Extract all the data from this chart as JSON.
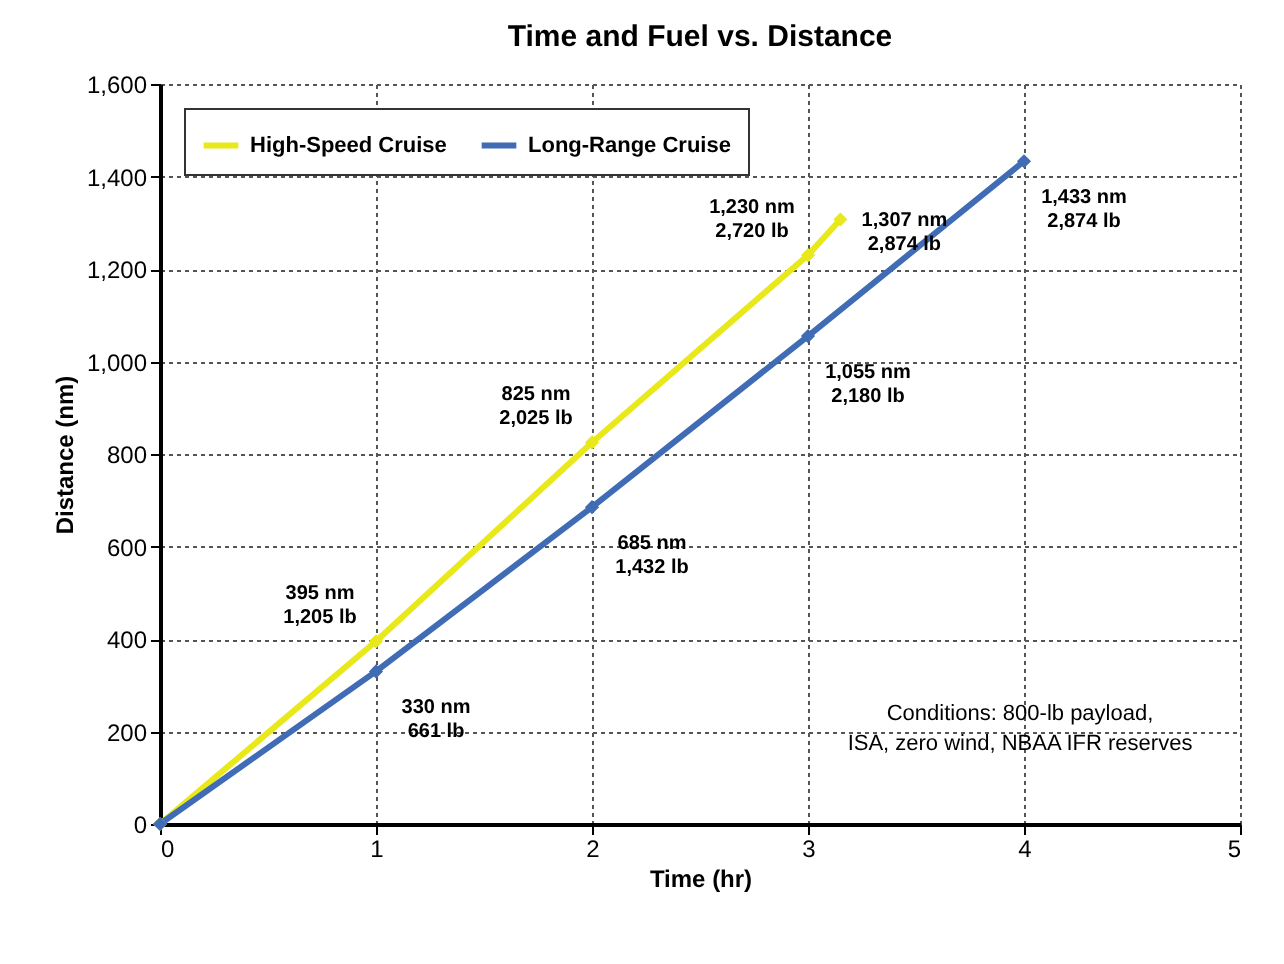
{
  "chart_data": {
    "type": "line",
    "title": "Time and Fuel vs. Distance",
    "xlabel": "Time (hr)",
    "ylabel": "Distance (nm)",
    "x": [
      0,
      1,
      2,
      3,
      4
    ],
    "series": [
      {
        "name": "High-Speed Cruise",
        "color": "#e8e81a",
        "x": [
          0,
          1,
          2,
          3,
          3.15
        ],
        "values": [
          0,
          395,
          825,
          1230,
          1307
        ]
      },
      {
        "name": "Long-Range Cruise",
        "color": "#3f6cb4",
        "values": [
          0,
          330,
          685,
          1055,
          1433
        ]
      }
    ],
    "xlim": [
      0,
      5
    ],
    "xticks": [
      0,
      1,
      2,
      3,
      4,
      5
    ],
    "ylim": [
      0,
      1600
    ],
    "yticks": [
      0,
      200,
      400,
      600,
      800,
      {
        "value": 1000,
        "label": "1,000"
      },
      {
        "value": 1200,
        "label": "1,200"
      },
      {
        "value": 1400,
        "label": "1,400"
      },
      {
        "value": 1600,
        "label": "1,600"
      }
    ],
    "grid": true,
    "legend": "top left",
    "marker": "diamond",
    "line_style": "solid",
    "annotations": [
      {
        "text": "395 nm\n1,205 lb",
        "x": 1,
        "y": 395
      },
      {
        "text": "825 nm\n2,025 lb",
        "x": 2,
        "y": 825
      },
      {
        "text": "1,230 nm\n2,720 lb",
        "x": 3,
        "y": 1230
      },
      {
        "text": "1,307 nm\n2,874 lb",
        "x": 3.15,
        "y": 1307
      },
      {
        "text": "330 nm\n661 lb",
        "x": 1,
        "y": 330
      },
      {
        "text": "685 nm\n1,432 lb",
        "x": 2,
        "y": 685
      },
      {
        "text": "1,055 nm\n2,180 lb",
        "x": 3,
        "y": 1055
      },
      {
        "text": "1,433 nm\n2,874 lb",
        "x": 4,
        "y": 1433
      },
      "Conditions: 800-lb payload,\nISA, zero wind, NBAA IFR reserves"
    ]
  }
}
